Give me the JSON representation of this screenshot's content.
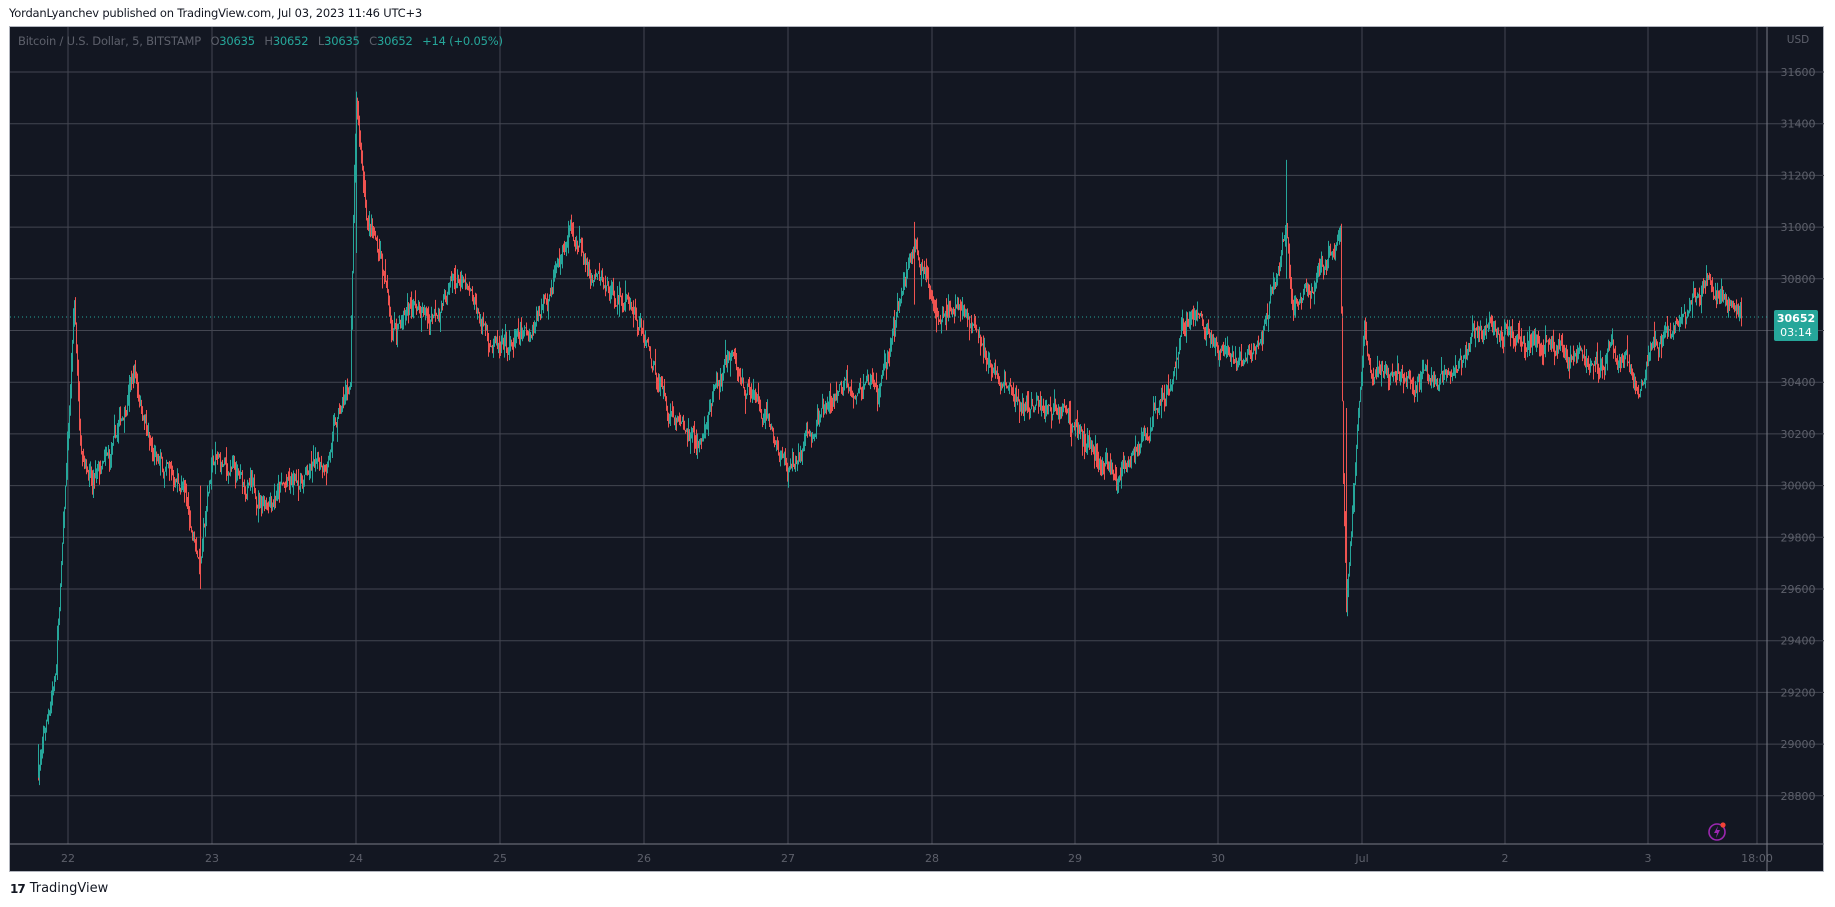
{
  "header": {
    "published_line": "YordanLyanchev published on TradingView.com, Jul 03, 2023 11:46 UTC+3"
  },
  "legend": {
    "symbol": "Bitcoin / U.S. Dollar, 5, BITSTAMP",
    "o_label": "O",
    "o_value": "30635",
    "h_label": "H",
    "h_value": "30652",
    "l_label": "L",
    "l_value": "30635",
    "c_label": "C",
    "c_value": "30652",
    "change": "+14 (+0.05%)"
  },
  "price_axis": {
    "currency": "USD",
    "last_price": "30652",
    "countdown": "03:14"
  },
  "footer": {
    "brand": "TradingView",
    "logo_mark": "17"
  },
  "colors": {
    "background": "#131722",
    "grid": "#4a4e59",
    "up": "#26a69a",
    "down": "#ef5350",
    "axis_text": "#5d606b",
    "price_tag": "#26a69a",
    "bolt": "#9c27b0",
    "bolt_dot": "#f44336"
  },
  "chart_data": {
    "type": "candlestick",
    "title": "Bitcoin / U.S. Dollar, 5, BITSTAMP",
    "interval": "5m",
    "xlabel": "",
    "ylabel": "USD",
    "ylim": [
      28640,
      31780
    ],
    "grid": true,
    "x_ticks": [
      "22",
      "23",
      "24",
      "25",
      "26",
      "27",
      "28",
      "29",
      "30",
      "Jul",
      "2",
      "3",
      "18:00"
    ],
    "y_ticks": [
      31600,
      31400,
      31200,
      31000,
      30800,
      30600,
      30400,
      30200,
      30000,
      29800,
      29600,
      29400,
      29200,
      29000,
      28800
    ],
    "last": {
      "open": 30635,
      "high": 30652,
      "low": 30635,
      "close": 30652,
      "change": 14,
      "change_pct": 0.05
    },
    "path_points": [
      [
        "Jun21 19:00",
        28900
      ],
      [
        "Jun21 22:00",
        29300
      ],
      [
        "Jun22 00:00",
        30200
      ],
      [
        "Jun22 01:00",
        30700
      ],
      [
        "Jun22 02:00",
        30200
      ],
      [
        "Jun22 04:00",
        30000
      ],
      [
        "Jun22 07:00",
        30100
      ],
      [
        "Jun22 11:00",
        30450
      ],
      [
        "Jun22 14:00",
        30100
      ],
      [
        "Jun22 19:00",
        30000
      ],
      [
        "Jun22 22:00",
        29700
      ],
      [
        "Jun23 00:00",
        30100
      ],
      [
        "Jun23 03:00",
        30050
      ],
      [
        "Jun23 08:00",
        29950
      ],
      [
        "Jun23 13:00",
        30000
      ],
      [
        "Jun23 19:00",
        30100
      ],
      [
        "Jun23 23:00",
        30400
      ],
      [
        "Jun23 23:40",
        31200
      ],
      [
        "Jun24 00:00",
        31450
      ],
      [
        "Jun24 02:00",
        31000
      ],
      [
        "Jun24 04:00",
        30900
      ],
      [
        "Jun24 06:00",
        30600
      ],
      [
        "Jun24 09:00",
        30700
      ],
      [
        "Jun24 12:00",
        30650
      ],
      [
        "Jun24 17:00",
        30800
      ],
      [
        "Jun25 00:00",
        30500
      ],
      [
        "Jun25 05:00",
        30600
      ],
      [
        "Jun25 12:00",
        31000
      ],
      [
        "Jun25 15:00",
        30800
      ],
      [
        "Jun25 22:00",
        30700
      ],
      [
        "Jun26 04:00",
        30300
      ],
      [
        "Jun26 09:00",
        30150
      ],
      [
        "Jun26 14:00",
        30500
      ],
      [
        "Jun26 19:00",
        30300
      ],
      [
        "Jun27 00:00",
        30050
      ],
      [
        "Jun27 05:00",
        30250
      ],
      [
        "Jun27 10:00",
        30400
      ],
      [
        "Jun27 15:00",
        30350
      ],
      [
        "Jun27 18:00",
        30650
      ],
      [
        "Jun27 21:00",
        30950
      ],
      [
        "Jun28 00:00",
        30700
      ],
      [
        "Jun28 05:00",
        30700
      ],
      [
        "Jun28 10:00",
        30450
      ],
      [
        "Jun28 15:00",
        30300
      ],
      [
        "Jun28 22:00",
        30300
      ],
      [
        "Jun29 01:00",
        30200
      ],
      [
        "Jun29 04:00",
        30100
      ],
      [
        "Jun29 07:00",
        30050
      ],
      [
        "Jun29 11:00",
        30150
      ],
      [
        "Jun29 16:00",
        30450
      ],
      [
        "Jun29 19:00",
        30700
      ],
      [
        "Jun29 23:00",
        30550
      ],
      [
        "Jun30 02:00",
        30450
      ],
      [
        "Jun30 07:00",
        30550
      ],
      [
        "Jun30 11:00",
        31000
      ],
      [
        "Jun30 12:00",
        30700
      ],
      [
        "Jun30 16:00",
        30800
      ],
      [
        "Jun30 19:00",
        30900
      ],
      [
        "Jun30 20:00",
        30950
      ],
      [
        "Jun30 20:30",
        30000
      ],
      [
        "Jun30 21:00",
        29500
      ],
      [
        "Jun30 22:30",
        30050
      ],
      [
        "Jul01 00:00",
        30600
      ],
      [
        "Jul01 01:00",
        30450
      ],
      [
        "Jul01 07:00",
        30450
      ],
      [
        "Jul01 10:00",
        30400
      ],
      [
        "Jul01 14:00",
        30400
      ],
      [
        "Jul01 19:00",
        30600
      ],
      [
        "Jul02 00:00",
        30600
      ],
      [
        "Jul02 07:00",
        30550
      ],
      [
        "Jul02 10:00",
        30500
      ],
      [
        "Jul02 18:00",
        30500
      ],
      [
        "Jul02 22:00",
        30400
      ],
      [
        "Jul03 00:00",
        30550
      ],
      [
        "Jul03 02:00",
        30550
      ],
      [
        "Jul03 05:00",
        30650
      ],
      [
        "Jul03 09:00",
        30800
      ],
      [
        "Jul03 12:00",
        30700
      ],
      [
        "Jul03 15:00",
        30652
      ]
    ],
    "notable_extremes": {
      "high": {
        "time": "Jun24 ~00:00",
        "price": 31450
      },
      "low_start": {
        "time": "Jun21",
        "price": 28870
      },
      "flash_low": {
        "time": "Jun30 ~21:00",
        "price": 29510
      }
    },
    "legend_position": "top-left"
  }
}
